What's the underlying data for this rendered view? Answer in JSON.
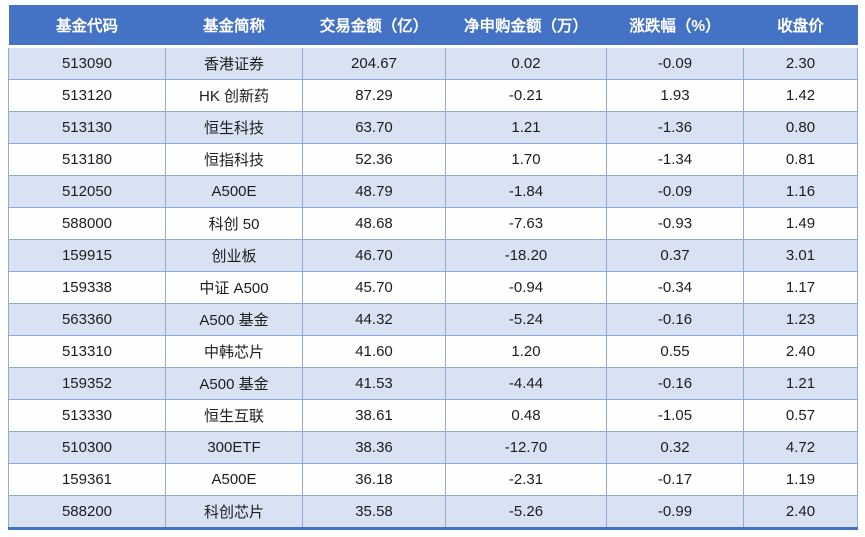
{
  "chart_data": {
    "type": "table",
    "title": "",
    "columns": [
      "基金代码",
      "基金简称",
      "交易金额（亿）",
      "净申购金额（万）",
      "涨跌幅（%）",
      "收盘价"
    ],
    "column_keys": [
      "code",
      "name",
      "trade-amount",
      "net-subscription",
      "change-pct",
      "close-price"
    ],
    "rows": [
      [
        "513090",
        "香港证券",
        "204.67",
        "0.02",
        "-0.09",
        "2.30"
      ],
      [
        "513120",
        "HK 创新药",
        "87.29",
        "-0.21",
        "1.93",
        "1.42"
      ],
      [
        "513130",
        "恒生科技",
        "63.70",
        "1.21",
        "-1.36",
        "0.80"
      ],
      [
        "513180",
        "恒指科技",
        "52.36",
        "1.70",
        "-1.34",
        "0.81"
      ],
      [
        "512050",
        "A500E",
        "48.79",
        "-1.84",
        "-0.09",
        "1.16"
      ],
      [
        "588000",
        "科创 50",
        "48.68",
        "-7.63",
        "-0.93",
        "1.49"
      ],
      [
        "159915",
        "创业板",
        "46.70",
        "-18.20",
        "0.37",
        "3.01"
      ],
      [
        "159338",
        "中证 A500",
        "45.70",
        "-0.94",
        "-0.34",
        "1.17"
      ],
      [
        "563360",
        "A500 基金",
        "44.32",
        "-5.24",
        "-0.16",
        "1.23"
      ],
      [
        "513310",
        "中韩芯片",
        "41.60",
        "1.20",
        "0.55",
        "2.40"
      ],
      [
        "159352",
        "A500 基金",
        "41.53",
        "-4.44",
        "-0.16",
        "1.21"
      ],
      [
        "513330",
        "恒生互联",
        "38.61",
        "0.48",
        "-1.05",
        "0.57"
      ],
      [
        "510300",
        "300ETF",
        "38.36",
        "-12.70",
        "0.32",
        "4.72"
      ],
      [
        "159361",
        "A500E",
        "36.18",
        "-2.31",
        "-0.17",
        "1.19"
      ],
      [
        "588200",
        "科创芯片",
        "35.58",
        "-5.26",
        "-0.99",
        "2.40"
      ]
    ]
  },
  "colors": {
    "header_bg": "#4472C4",
    "header_text": "#FFFFFF",
    "band_row_bg": "#D9E2F3",
    "grid_border": "#8EAADB",
    "bottom_border": "#4472C4"
  }
}
